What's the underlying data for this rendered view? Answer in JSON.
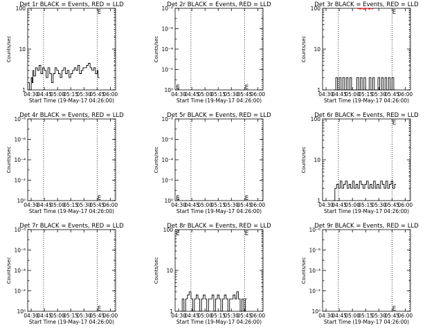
{
  "chart_data": [
    {
      "id": "det1",
      "type": "line",
      "title": "Det 1r BLACK = Events, RED = LLD",
      "ylabel": "Counts/sec",
      "xlabel": "Start Time (19-May-17 04:26:00)",
      "yscale": "log",
      "ytick_labels": [
        "1",
        "10",
        "100"
      ],
      "ytick_exponents": [
        0,
        1,
        2
      ],
      "ylim_exp": [
        0,
        2
      ],
      "xtick_labels": [
        "04:30",
        "04:45",
        "05:00",
        "05:15",
        "05:30",
        "05:45",
        "06:00"
      ],
      "xtick_minutes": [
        270,
        285,
        300,
        315,
        330,
        345,
        360
      ],
      "xlim_minutes": [
        266,
        366
      ],
      "vlines_minutes": [
        284,
        345,
        365
      ],
      "marker_label": "E",
      "marker_at": {
        "x": 345.3,
        "y": 85
      },
      "series": [
        {
          "color": "#000000",
          "x": [
            266,
            268,
            270,
            271,
            272,
            273,
            275,
            277,
            279,
            281,
            283,
            285,
            287,
            289,
            291,
            293,
            295,
            297,
            299,
            301,
            303,
            305,
            307,
            309,
            311,
            313,
            315,
            317,
            319,
            321,
            323,
            325,
            327,
            329,
            331,
            333,
            335,
            337,
            339,
            341,
            343,
            345,
            346
          ],
          "y": [
            1.5,
            1.0,
            2.0,
            1.5,
            3.0,
            2.2,
            3.5,
            3.0,
            4.0,
            2.5,
            3.5,
            3.0,
            2.0,
            3.5,
            2.5,
            1.5,
            2.5,
            3.5,
            3.0,
            2.5,
            2.0,
            3.0,
            3.5,
            2.5,
            3.0,
            2.0,
            2.5,
            3.0,
            3.5,
            3.0,
            4.0,
            2.5,
            3.0,
            3.5,
            3.5,
            4.0,
            4.5,
            3.5,
            3.0,
            3.5,
            2.5,
            3.0,
            2.0
          ]
        }
      ]
    },
    {
      "id": "det2",
      "type": "line",
      "title": "Det 2r BLACK = Events, RED = LLD",
      "ylabel": "Counts/sec",
      "xlabel": "Start Time (19-May-17 04:26:00)",
      "yscale": "log",
      "ytick_labels": [
        "10⁰",
        "10⁻²",
        "10⁻⁴",
        "10⁻⁶",
        "10⁻⁸"
      ],
      "ytick_exponents": [
        0,
        2,
        4,
        6,
        8
      ],
      "ylim_exp": [
        0,
        8
      ],
      "xtick_labels": [
        "04:30",
        "04:45",
        "05:00",
        "05:15",
        "05:30",
        "05:45",
        "06:00"
      ],
      "xtick_minutes": [
        270,
        285,
        300,
        315,
        330,
        345,
        360
      ],
      "xlim_minutes": [
        266,
        366
      ],
      "vlines_minutes": [
        284,
        345,
        365
      ],
      "markers": [
        {
          "label": "E",
          "x": 267,
          "y_exp": 0.35
        },
        {
          "label": "E",
          "x": 345.3,
          "y_exp": 0.35
        }
      ],
      "series": []
    },
    {
      "id": "det3",
      "type": "line",
      "title": "Det 3r BLACK = Events, RED = LLD",
      "ylabel": "Counts/sec",
      "xlabel": "Start Time (19-May-17 04:26:00)",
      "yscale": "log",
      "ytick_labels": [
        "1",
        "10",
        "100"
      ],
      "ytick_exponents": [
        0,
        1,
        2
      ],
      "ylim_exp": [
        0,
        2
      ],
      "xtick_labels": [
        "04:30",
        "04:45",
        "05:00",
        "05:15",
        "05:30",
        "05:45",
        "06:00"
      ],
      "xtick_minutes": [
        270,
        285,
        300,
        315,
        330,
        345,
        360
      ],
      "xlim_minutes": [
        266,
        366
      ],
      "vlines_minutes": [
        284,
        345,
        365
      ],
      "marker_label": "E",
      "marker_at": {
        "x": 345.3,
        "y": 85
      },
      "series": [
        {
          "color": "#000000",
          "x": [
            279,
            281,
            283,
            285,
            287,
            289,
            291,
            293,
            295,
            297,
            299,
            301,
            303,
            305,
            307,
            309,
            311,
            313,
            315,
            317,
            319,
            321,
            323,
            325,
            327,
            329,
            331,
            333,
            335,
            337,
            339,
            341,
            343,
            345,
            347
          ],
          "y": [
            1.0,
            2.0,
            1.0,
            2.0,
            1.0,
            2.0,
            1.0,
            2.0,
            1.0,
            2.0,
            1.0,
            1.0,
            1.0,
            2.0,
            1.0,
            2.0,
            1.0,
            2.0,
            1.0,
            1.0,
            2.0,
            1.0,
            2.0,
            1.0,
            1.0,
            2.0,
            1.0,
            2.0,
            1.0,
            2.0,
            1.0,
            2.0,
            1.0,
            2.0,
            1.0
          ]
        },
        {
          "color": "#ff0000",
          "x": [
            306,
            308,
            310,
            312,
            314,
            316,
            318,
            320,
            322
          ],
          "y": [
            98,
            96,
            100,
            95,
            98,
            100,
            96,
            99,
            97
          ]
        }
      ]
    },
    {
      "id": "det4",
      "type": "line",
      "title": "Det 4r BLACK = Events, RED = LLD",
      "ylabel": "Counts/sec",
      "xlabel": "Start Time (19-May-17 04:26:00)",
      "yscale": "log",
      "ytick_labels": [
        "10⁰",
        "10⁻²",
        "10⁻⁴",
        "10⁻⁶",
        "10⁻⁸"
      ],
      "ytick_exponents": [
        0,
        2,
        4,
        6,
        8
      ],
      "ylim_exp": [
        0,
        8
      ],
      "xtick_labels": [
        "04:30",
        "04:45",
        "05:00",
        "05:15",
        "05:30",
        "05:45",
        "06:00"
      ],
      "xtick_minutes": [
        270,
        285,
        300,
        315,
        330,
        345,
        360
      ],
      "xlim_minutes": [
        266,
        366
      ],
      "vlines_minutes": [
        284,
        345,
        365
      ],
      "markers": [
        {
          "label": "E",
          "x": 345.3,
          "y_exp": 0.35
        }
      ],
      "series": []
    },
    {
      "id": "det5",
      "type": "line",
      "title": "Det 5r BLACK = Events, RED = LLD",
      "ylabel": "Counts/sec",
      "xlabel": "Start Time (19-May-17 04:26:00)",
      "yscale": "log",
      "ytick_labels": [
        "10⁰",
        "10⁻²",
        "10⁻⁴",
        "10⁻⁶",
        "10⁻⁸"
      ],
      "ytick_exponents": [
        0,
        2,
        4,
        6,
        8
      ],
      "ylim_exp": [
        0,
        8
      ],
      "xtick_labels": [
        "04:30",
        "04:45",
        "05:00",
        "05:15",
        "05:30",
        "05:45",
        "06:00"
      ],
      "xtick_minutes": [
        270,
        285,
        300,
        315,
        330,
        345,
        360
      ],
      "xlim_minutes": [
        266,
        366
      ],
      "vlines_minutes": [
        284,
        345,
        365
      ],
      "markers": [
        {
          "label": "E",
          "x": 267,
          "y_exp": 0.35
        },
        {
          "label": "E",
          "x": 345.3,
          "y_exp": 0.35
        }
      ],
      "series": []
    },
    {
      "id": "det6",
      "type": "line",
      "title": "Det 6r BLACK = Events, RED = LLD",
      "ylabel": "Counts/sec",
      "xlabel": "Start Time (19-May-17 04:26:00)",
      "yscale": "log",
      "ytick_labels": [
        "1",
        "10",
        "100"
      ],
      "ytick_exponents": [
        0,
        1,
        2
      ],
      "ylim_exp": [
        0,
        2
      ],
      "xtick_labels": [
        "04:30",
        "04:45",
        "05:00",
        "05:15",
        "05:30",
        "05:45",
        "06:00"
      ],
      "xtick_minutes": [
        270,
        285,
        300,
        315,
        330,
        345,
        360
      ],
      "xlim_minutes": [
        266,
        366
      ],
      "vlines_minutes": [
        284,
        345,
        365
      ],
      "marker_label": "E",
      "marker_at": {
        "x": 345.3,
        "y": 85
      },
      "series": [
        {
          "color": "#000000",
          "x": [
            278,
            280,
            282,
            284,
            286,
            288,
            290,
            292,
            294,
            296,
            298,
            300,
            302,
            304,
            306,
            308,
            310,
            312,
            314,
            316,
            318,
            320,
            322,
            324,
            326,
            328,
            330,
            332,
            334,
            336,
            338,
            340,
            342,
            344,
            346,
            348
          ],
          "y": [
            1.0,
            2.0,
            2.5,
            2.0,
            3.0,
            2.0,
            2.5,
            3.0,
            2.0,
            2.5,
            2.0,
            3.0,
            2.0,
            2.5,
            2.0,
            3.0,
            2.5,
            2.0,
            2.5,
            3.0,
            2.0,
            2.5,
            2.0,
            3.0,
            2.0,
            2.5,
            2.0,
            3.0,
            2.5,
            2.0,
            3.0,
            2.0,
            2.5,
            3.0,
            2.0,
            2.5
          ]
        }
      ]
    },
    {
      "id": "det7",
      "type": "line",
      "title": "Det 7r BLACK = Events, RED = LLD",
      "ylabel": "Counts/sec",
      "xlabel": "Start Time (19-May-17 04:26:00)",
      "yscale": "log",
      "ytick_labels": [
        "10⁰",
        "10⁻²",
        "10⁻⁴",
        "10⁻⁶",
        "10⁻⁸"
      ],
      "ytick_exponents": [
        0,
        2,
        4,
        6,
        8
      ],
      "ylim_exp": [
        0,
        8
      ],
      "xtick_labels": [
        "04:30",
        "04:45",
        "05:00",
        "05:15",
        "05:30",
        "05:45",
        "06:00"
      ],
      "xtick_minutes": [
        270,
        285,
        300,
        315,
        330,
        345,
        360
      ],
      "xlim_minutes": [
        266,
        366
      ],
      "vlines_minutes": [
        284,
        345,
        365
      ],
      "markers": [
        {
          "label": "E",
          "x": 345.3,
          "y_exp": 0.35
        }
      ],
      "series": []
    },
    {
      "id": "det8",
      "type": "line",
      "title": "Det 8r BLACK = Events, RED = LLD",
      "ylabel": "Counts/sec",
      "xlabel": "Start Time (19-May-17 04:26:00)",
      "yscale": "log",
      "ytick_labels": [
        "1",
        "10",
        "100"
      ],
      "ytick_exponents": [
        0,
        1,
        2
      ],
      "ylim_exp": [
        0,
        2
      ],
      "xtick_labels": [
        "04:30",
        "04:45",
        "05:00",
        "05:15",
        "05:30",
        "05:45",
        "06:00"
      ],
      "xtick_minutes": [
        270,
        285,
        300,
        315,
        330,
        345,
        360
      ],
      "xlim_minutes": [
        266,
        366
      ],
      "vlines_minutes": [
        284,
        345,
        365
      ],
      "markers": [
        {
          "label": "E",
          "x": 267,
          "y_exp": 1.93
        },
        {
          "label": "E",
          "x": 345.3,
          "y_exp": 1.93
        }
      ],
      "series": [
        {
          "color": "#000000",
          "x": [
            272,
            274,
            276,
            278,
            280,
            282,
            284,
            286,
            288,
            290,
            292,
            294,
            296,
            298,
            300,
            302,
            304,
            306,
            308,
            310,
            312,
            314,
            316,
            318,
            320,
            322,
            324,
            326,
            328,
            330,
            332,
            334,
            336,
            338,
            340,
            342,
            344,
            346
          ],
          "y": [
            1.0,
            2.0,
            1.0,
            2.0,
            2.5,
            3.0,
            2.0,
            1.0,
            2.0,
            2.5,
            2.0,
            1.0,
            2.0,
            2.5,
            2.0,
            1.0,
            2.0,
            2.0,
            2.5,
            1.0,
            2.0,
            2.5,
            2.0,
            1.0,
            2.0,
            2.5,
            2.0,
            1.0,
            2.0,
            2.0,
            2.5,
            2.0,
            3.0,
            2.0,
            1.0,
            2.0,
            1.0,
            2.0
          ]
        }
      ]
    },
    {
      "id": "det9",
      "type": "line",
      "title": "Det 9r BLACK = Events, RED = LLD",
      "ylabel": "Counts/sec",
      "xlabel": "Start Time (19-May-17 04:26:00)",
      "yscale": "log",
      "ytick_labels": [
        "10⁰",
        "10⁻²",
        "10⁻⁴",
        "10⁻⁶",
        "10⁻⁸"
      ],
      "ytick_exponents": [
        0,
        2,
        4,
        6,
        8
      ],
      "ylim_exp": [
        0,
        8
      ],
      "xtick_labels": [
        "04:30",
        "04:45",
        "05:00",
        "05:15",
        "05:30",
        "05:45",
        "06:00"
      ],
      "xtick_minutes": [
        270,
        285,
        300,
        315,
        330,
        345,
        360
      ],
      "xlim_minutes": [
        266,
        366
      ],
      "vlines_minutes": [
        284,
        345,
        365
      ],
      "markers": [
        {
          "label": "E",
          "x": 345.3,
          "y_exp": 0.35
        }
      ],
      "series": []
    }
  ]
}
